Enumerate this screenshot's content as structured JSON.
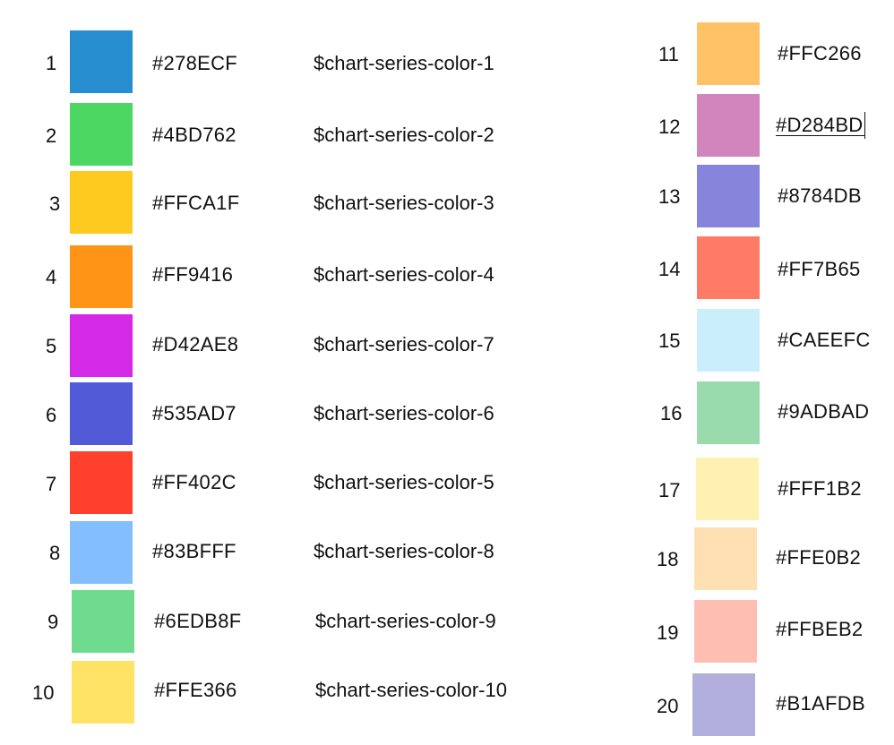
{
  "left_column": [
    {
      "index": "1",
      "hex": "#278ECF",
      "var": "$chart-series-color-1",
      "color": "#278ECF"
    },
    {
      "index": "2",
      "hex": "#4BD762",
      "var": "$chart-series-color-2",
      "color": "#4BD762"
    },
    {
      "index": "3",
      "hex": "#FFCA1F",
      "var": "$chart-series-color-3",
      "color": "#FFCA1F"
    },
    {
      "index": "4",
      "hex": "#FF9416",
      "var": "$chart-series-color-4",
      "color": "#FF9416"
    },
    {
      "index": "5",
      "hex": "#D42AE8",
      "var": "$chart-series-color-7",
      "color": "#D42AE8"
    },
    {
      "index": "6",
      "hex": "#535AD7",
      "var": "$chart-series-color-6",
      "color": "#535AD7"
    },
    {
      "index": "7",
      "hex": "#FF402C",
      "var": "$chart-series-color-5",
      "color": "#FF402C"
    },
    {
      "index": "8",
      "hex": "#83BFFF",
      "var": "$chart-series-color-8",
      "color": "#83BFFF"
    },
    {
      "index": "9",
      "hex": "#6EDB8F",
      "var": "$chart-series-color-9",
      "color": "#6EDB8F"
    },
    {
      "index": "10",
      "hex": "#FFE366",
      "var": "$chart-series-color-10",
      "color": "#FFE366"
    }
  ],
  "right_column": [
    {
      "index": "11",
      "hex": "#FFC266",
      "color": "#FFC266"
    },
    {
      "index": "12",
      "hex": "#D284BD",
      "color": "#D284BD"
    },
    {
      "index": "13",
      "hex": "#8784DB",
      "color": "#8784DB"
    },
    {
      "index": "14",
      "hex": "#FF7B65",
      "color": "#FF7B65"
    },
    {
      "index": "15",
      "hex": "#CAEEFC",
      "color": "#CAEEFC"
    },
    {
      "index": "16",
      "hex": "#9ADBAD",
      "color": "#9ADBAD"
    },
    {
      "index": "17",
      "hex": "#FFF1B2",
      "color": "#FFF1B2"
    },
    {
      "index": "18",
      "hex": "#FFE0B2",
      "color": "#FFE0B2"
    },
    {
      "index": "19",
      "hex": "#FFBEB2",
      "color": "#FFBEB2"
    },
    {
      "index": "20",
      "hex": "#B1AFDB",
      "color": "#B1AFDB"
    }
  ]
}
